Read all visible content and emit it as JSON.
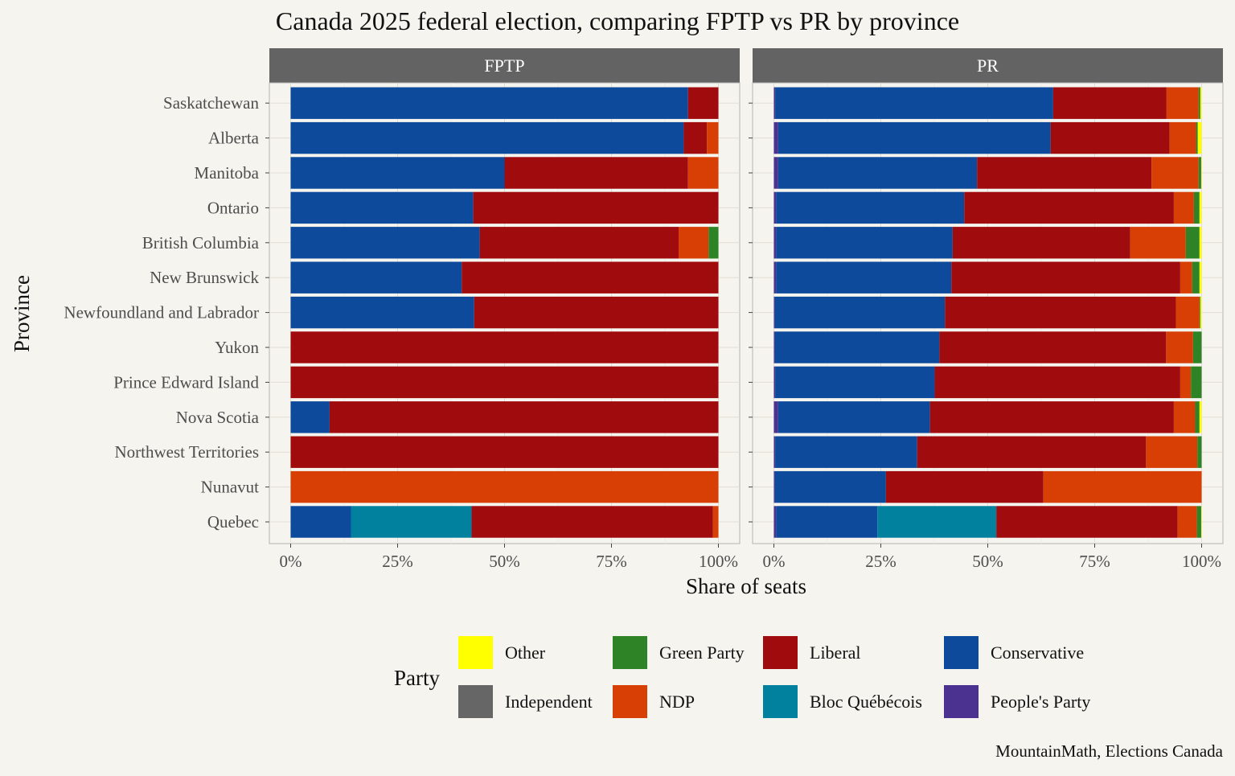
{
  "chart_data": {
    "type": "bar",
    "orientation": "horizontal",
    "stacked": true,
    "title": "Canada 2025 federal election, comparing FPTP vs PR by province",
    "xlabel": "Share of seats",
    "ylabel": "Province",
    "caption": "MountainMath, Elections Canada",
    "xlim": [
      0,
      1
    ],
    "x_ticks": [
      "0%",
      "25%",
      "50%",
      "75%",
      "100%"
    ],
    "grid": true,
    "legend": {
      "title": "Party",
      "position": "bottom",
      "entries": [
        "Other",
        "Green Party",
        "Liberal",
        "Conservative",
        "Independent",
        "NDP",
        "Bloc Québécois",
        "People's Party"
      ]
    },
    "colors": {
      "People's Party": "#4b3190",
      "Conservative": "#0e4a9c",
      "Bloc Québécois": "#02819e",
      "Liberal": "#a00b0e",
      "NDP": "#d83f05",
      "Green Party": "#2e8326",
      "Independent": "#666666",
      "Other": "#ffff00"
    },
    "stack_order": [
      "People's Party",
      "Conservative",
      "Bloc Québécois",
      "Liberal",
      "NDP",
      "Green Party",
      "Independent",
      "Other"
    ],
    "categories": [
      "Saskatchewan",
      "Alberta",
      "Manitoba",
      "Ontario",
      "British Columbia",
      "New Brunswick",
      "Newfoundland and Labrador",
      "Yukon",
      "Prince Edward Island",
      "Nova Scotia",
      "Northwest Territories",
      "Nunavut",
      "Quebec"
    ],
    "panels": [
      {
        "name": "FPTP",
        "series": [
          {
            "name": "People's Party",
            "values": [
              0,
              0,
              0,
              0,
              0,
              0,
              0,
              0,
              0,
              0,
              0,
              0,
              0
            ]
          },
          {
            "name": "Conservative",
            "values": [
              0.929,
              0.919,
              0.5,
              0.427,
              0.442,
              0.4,
              0.429,
              0,
              0,
              0.091,
              0,
              0,
              0.141
            ]
          },
          {
            "name": "Bloc Québécois",
            "values": [
              0,
              0,
              0,
              0,
              0,
              0,
              0,
              0,
              0,
              0,
              0,
              0,
              0.282
            ]
          },
          {
            "name": "Liberal",
            "values": [
              0.071,
              0.054,
              0.429,
              0.573,
              0.465,
              0.6,
              0.571,
              1.0,
              1.0,
              0.909,
              1.0,
              0,
              0.564
            ]
          },
          {
            "name": "NDP",
            "values": [
              0,
              0.027,
              0.071,
              0,
              0.07,
              0,
              0,
              0,
              0,
              0,
              0,
              1.0,
              0.013
            ]
          },
          {
            "name": "Green Party",
            "values": [
              0,
              0,
              0,
              0,
              0.023,
              0,
              0,
              0,
              0,
              0,
              0,
              0,
              0
            ]
          },
          {
            "name": "Independent",
            "values": [
              0,
              0,
              0,
              0,
              0,
              0,
              0,
              0,
              0,
              0,
              0,
              0,
              0
            ]
          },
          {
            "name": "Other",
            "values": [
              0,
              0,
              0,
              0,
              0,
              0,
              0,
              0,
              0,
              0,
              0,
              0,
              0
            ]
          }
        ]
      },
      {
        "name": "PR",
        "series": [
          {
            "name": "People's Party",
            "values": [
              0.003,
              0.01,
              0.01,
              0.005,
              0.005,
              0.005,
              0.002,
              0.002,
              0.003,
              0.01,
              0.003,
              0.002,
              0.005
            ]
          },
          {
            "name": "Conservative",
            "values": [
              0.65,
              0.637,
              0.465,
              0.44,
              0.413,
              0.41,
              0.398,
              0.385,
              0.373,
              0.355,
              0.332,
              0.26,
              0.237
            ]
          },
          {
            "name": "Bloc Québécois",
            "values": [
              0,
              0,
              0,
              0,
              0,
              0,
              0,
              0,
              0,
              0,
              0,
              0,
              0.278
            ]
          },
          {
            "name": "Liberal",
            "values": [
              0.265,
              0.278,
              0.408,
              0.49,
              0.415,
              0.535,
              0.54,
              0.53,
              0.574,
              0.57,
              0.535,
              0.368,
              0.424
            ]
          },
          {
            "name": "NDP",
            "values": [
              0.075,
              0.062,
              0.11,
              0.047,
              0.13,
              0.028,
              0.055,
              0.063,
              0.025,
              0.05,
              0.12,
              0.37,
              0.045
            ]
          },
          {
            "name": "Green Party",
            "values": [
              0.004,
              0.004,
              0.006,
              0.013,
              0.032,
              0.017,
              0.002,
              0.02,
              0.025,
              0.01,
              0.01,
              0,
              0.01
            ]
          },
          {
            "name": "Independent",
            "values": [
              0,
              0,
              0,
              0,
              0,
              0,
              0,
              0,
              0,
              0,
              0,
              0,
              0
            ]
          },
          {
            "name": "Other",
            "values": [
              0.003,
              0.009,
              0.001,
              0.005,
              0.005,
              0.005,
              0.003,
              0,
              0,
              0.005,
              0,
              0,
              0.001
            ]
          }
        ]
      }
    ]
  }
}
